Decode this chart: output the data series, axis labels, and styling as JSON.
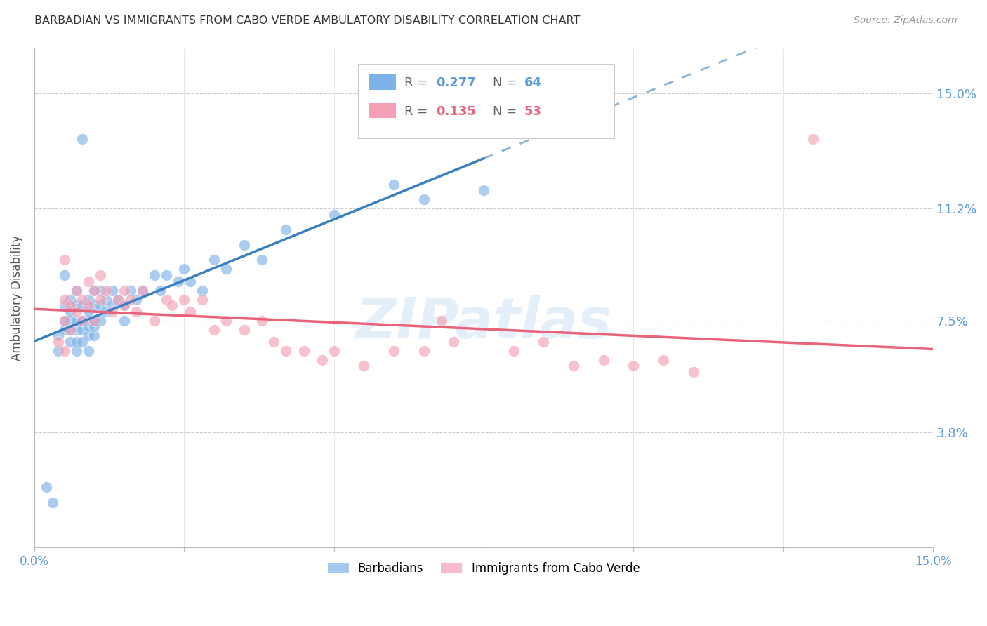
{
  "title": "BARBADIAN VS IMMIGRANTS FROM CABO VERDE AMBULATORY DISABILITY CORRELATION CHART",
  "source": "Source: ZipAtlas.com",
  "ylabel": "Ambulatory Disability",
  "ytick_labels": [
    "15.0%",
    "11.2%",
    "7.5%",
    "3.8%"
  ],
  "ytick_values": [
    0.15,
    0.112,
    0.075,
    0.038
  ],
  "xlim": [
    0.0,
    0.15
  ],
  "ylim": [
    0.0,
    0.165
  ],
  "color_barbadian": "#7EB3E8",
  "color_cabo_verde": "#F4A0B5",
  "color_line_barbadian": "#3A7FC1",
  "color_line_cabo_verde": "#E8637A",
  "color_axis_text": "#5B9BD5",
  "barbadian_x": [
    0.002,
    0.003,
    0.004,
    0.004,
    0.005,
    0.005,
    0.005,
    0.005,
    0.006,
    0.006,
    0.006,
    0.006,
    0.006,
    0.007,
    0.007,
    0.007,
    0.007,
    0.007,
    0.007,
    0.008,
    0.008,
    0.008,
    0.008,
    0.009,
    0.009,
    0.009,
    0.009,
    0.009,
    0.009,
    0.01,
    0.01,
    0.01,
    0.01,
    0.01,
    0.011,
    0.011,
    0.011,
    0.012,
    0.012,
    0.013,
    0.013,
    0.014,
    0.015,
    0.015,
    0.016,
    0.017,
    0.018,
    0.02,
    0.021,
    0.022,
    0.024,
    0.025,
    0.026,
    0.028,
    0.03,
    0.032,
    0.035,
    0.038,
    0.042,
    0.05,
    0.06,
    0.065,
    0.075,
    0.008
  ],
  "barbadian_y": [
    0.02,
    0.015,
    0.07,
    0.065,
    0.072,
    0.075,
    0.08,
    0.09,
    0.068,
    0.072,
    0.075,
    0.078,
    0.082,
    0.065,
    0.068,
    0.072,
    0.075,
    0.08,
    0.085,
    0.068,
    0.072,
    0.075,
    0.08,
    0.065,
    0.07,
    0.073,
    0.075,
    0.078,
    0.082,
    0.07,
    0.073,
    0.075,
    0.08,
    0.085,
    0.075,
    0.08,
    0.085,
    0.078,
    0.082,
    0.08,
    0.085,
    0.082,
    0.075,
    0.08,
    0.085,
    0.082,
    0.085,
    0.09,
    0.085,
    0.09,
    0.088,
    0.092,
    0.088,
    0.085,
    0.095,
    0.092,
    0.1,
    0.095,
    0.105,
    0.11,
    0.12,
    0.115,
    0.118,
    0.135
  ],
  "cabo_verde_x": [
    0.004,
    0.005,
    0.005,
    0.005,
    0.006,
    0.006,
    0.007,
    0.007,
    0.008,
    0.008,
    0.009,
    0.009,
    0.01,
    0.01,
    0.011,
    0.011,
    0.012,
    0.013,
    0.014,
    0.015,
    0.015,
    0.016,
    0.017,
    0.018,
    0.02,
    0.022,
    0.023,
    0.025,
    0.026,
    0.028,
    0.03,
    0.032,
    0.035,
    0.038,
    0.04,
    0.042,
    0.045,
    0.048,
    0.05,
    0.055,
    0.06,
    0.065,
    0.068,
    0.07,
    0.08,
    0.085,
    0.09,
    0.095,
    0.1,
    0.105,
    0.11,
    0.005,
    0.13
  ],
  "cabo_verde_y": [
    0.068,
    0.075,
    0.082,
    0.095,
    0.072,
    0.08,
    0.078,
    0.085,
    0.075,
    0.082,
    0.08,
    0.088,
    0.075,
    0.085,
    0.082,
    0.09,
    0.085,
    0.078,
    0.082,
    0.08,
    0.085,
    0.082,
    0.078,
    0.085,
    0.075,
    0.082,
    0.08,
    0.082,
    0.078,
    0.082,
    0.072,
    0.075,
    0.072,
    0.075,
    0.068,
    0.065,
    0.065,
    0.062,
    0.065,
    0.06,
    0.065,
    0.065,
    0.075,
    0.068,
    0.065,
    0.068,
    0.06,
    0.062,
    0.06,
    0.062,
    0.058,
    0.065,
    0.135
  ]
}
